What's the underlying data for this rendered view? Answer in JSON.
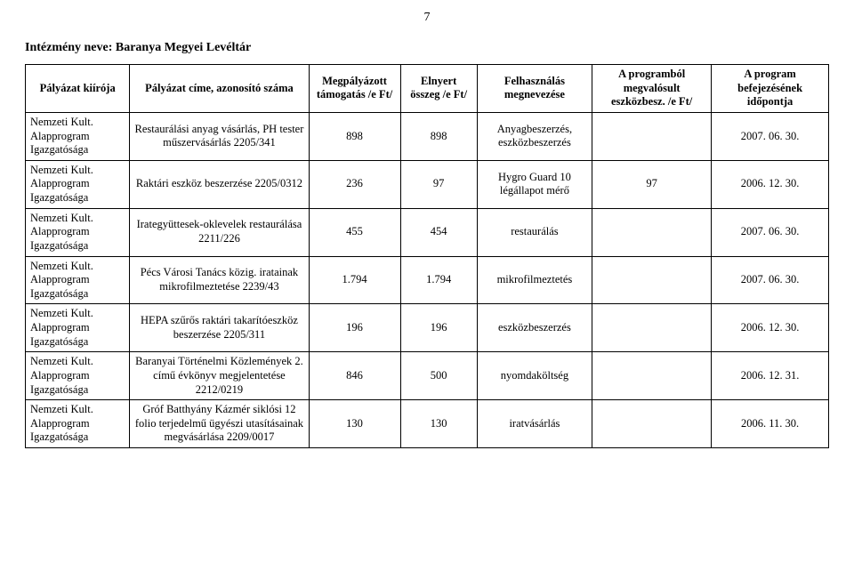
{
  "page_number": "7",
  "heading": "Intézmény neve: Baranya Megyei Levéltár",
  "columns": [
    "Pályázat kiírója",
    "Pályázat címe, azonosító száma",
    "Megpályázott támogatás /e Ft/",
    "Elnyert összeg /e Ft/",
    "Felhasználás megnevezése",
    "A programból megvalósult eszközbesz. /e Ft/",
    "A program befejezésének időpontja"
  ],
  "rows": [
    {
      "c0": "Nemzeti Kult. Alapprogram Igazgatósága",
      "c1": "Restaurálási anyag vásárlás, PH tester műszervásárlás 2205/341",
      "c2": "898",
      "c3": "898",
      "c4": "Anyagbeszerzés, eszközbeszerzés",
      "c5": "",
      "c6": "2007. 06. 30."
    },
    {
      "c0": "Nemzeti Kult. Alapprogram Igazgatósága",
      "c1": "Raktári eszköz beszerzése 2205/0312",
      "c2": "236",
      "c3": "97",
      "c4": "Hygro Guard 10 légállapot mérő",
      "c5": "97",
      "c6": "2006. 12. 30."
    },
    {
      "c0": "Nemzeti Kult. Alapprogram Igazgatósága",
      "c1": "Irategyüttesek-oklevelek restaurálása 2211/226",
      "c2": "455",
      "c3": "454",
      "c4": "restaurálás",
      "c5": "",
      "c6": "2007. 06. 30."
    },
    {
      "c0": "Nemzeti Kult. Alapprogram Igazgatósága",
      "c1": "Pécs Városi Tanács közig. iratainak mikrofilmeztetése 2239/43",
      "c2": "1.794",
      "c3": "1.794",
      "c4": "mikrofilmeztetés",
      "c5": "",
      "c6": "2007. 06. 30."
    },
    {
      "c0": "Nemzeti Kult. Alapprogram Igazgatósága",
      "c1": "HEPA szűrős raktári takarítóeszköz beszerzése 2205/311",
      "c2": "196",
      "c3": "196",
      "c4": "eszközbeszerzés",
      "c5": "",
      "c6": "2006. 12. 30."
    },
    {
      "c0": "Nemzeti Kult. Alapprogram Igazgatósága",
      "c1": "Baranyai Történelmi Közlemények 2. című évkönyv megjelentetése 2212/0219",
      "c2": "846",
      "c3": "500",
      "c4": "nyomdaköltség",
      "c5": "",
      "c6": "2006. 12. 31."
    },
    {
      "c0": "Nemzeti Kult. Alapprogram Igazgatósága",
      "c1": "Gróf Batthyány Kázmér siklósi 12 folio terjedelmű ügyészi utasításainak megvásárlása 2209/0017",
      "c2": "130",
      "c3": "130",
      "c4": "iratvásárlás",
      "c5": "",
      "c6": "2006. 11. 30."
    }
  ]
}
